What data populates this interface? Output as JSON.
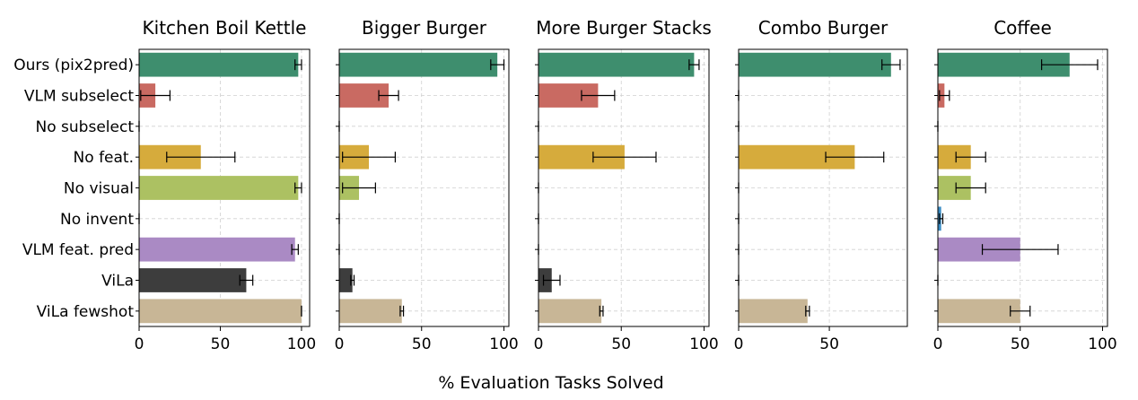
{
  "xlabel": "% Evaluation Tasks Solved",
  "categories": [
    "Ours (pix2pred)",
    "VLM subselect",
    "No subselect",
    "No feat.",
    "No visual",
    "No invent",
    "VLM feat. pred",
    "ViLa",
    "ViLa fewshot"
  ],
  "colors": [
    "#3e8e6e",
    "#c96a62",
    "#555555",
    "#d6ab3c",
    "#acc162",
    "#3a8cc4",
    "#aa8ac4",
    "#3d3d3d",
    "#c8b696"
  ],
  "chart_data": [
    {
      "type": "bar",
      "orientation": "horizontal",
      "title": "Kitchen Boil Kettle",
      "categories": [
        "Ours (pix2pred)",
        "VLM subselect",
        "No subselect",
        "No feat.",
        "No visual",
        "No invent",
        "VLM feat. pred",
        "ViLa",
        "ViLa fewshot"
      ],
      "values": [
        98,
        10,
        0,
        38,
        98,
        0,
        96,
        66,
        100
      ],
      "errors": [
        2,
        9,
        0,
        21,
        2,
        0,
        2,
        4,
        0
      ],
      "xlim": [
        0,
        105
      ],
      "xticks": [
        0,
        50,
        100
      ],
      "grid": true
    },
    {
      "type": "bar",
      "orientation": "horizontal",
      "title": "Bigger Burger",
      "categories": [
        "Ours (pix2pred)",
        "VLM subselect",
        "No subselect",
        "No feat.",
        "No visual",
        "No invent",
        "VLM feat. pred",
        "ViLa",
        "ViLa fewshot"
      ],
      "values": [
        96,
        30,
        0,
        18,
        12,
        0,
        0,
        8,
        38
      ],
      "errors": [
        4,
        6,
        0,
        16,
        10,
        0,
        0,
        1,
        1
      ],
      "xlim": [
        0,
        103
      ],
      "xticks": [
        0,
        50,
        100
      ],
      "grid": true
    },
    {
      "type": "bar",
      "orientation": "horizontal",
      "title": "More Burger Stacks",
      "categories": [
        "Ours (pix2pred)",
        "VLM subselect",
        "No subselect",
        "No feat.",
        "No visual",
        "No invent",
        "VLM feat. pred",
        "ViLa",
        "ViLa fewshot"
      ],
      "values": [
        94,
        36,
        0,
        52,
        0,
        0,
        0,
        8,
        38
      ],
      "errors": [
        3,
        10,
        0,
        19,
        0,
        0,
        0,
        5,
        1
      ],
      "xlim": [
        0,
        103
      ],
      "xticks": [
        0,
        50,
        100
      ],
      "grid": true
    },
    {
      "type": "bar",
      "orientation": "horizontal",
      "title": "Combo Burger",
      "categories": [
        "Ours (pix2pred)",
        "VLM subselect",
        "No subselect",
        "No feat.",
        "No visual",
        "No invent",
        "VLM feat. pred",
        "ViLa",
        "ViLa fewshot"
      ],
      "values": [
        84,
        0,
        0,
        64,
        0,
        0,
        0,
        0,
        38
      ],
      "errors": [
        5,
        0,
        0,
        16,
        0,
        0,
        0,
        0,
        1
      ],
      "xlim": [
        0,
        93
      ],
      "xticks": [
        0,
        50
      ],
      "grid": true
    },
    {
      "type": "bar",
      "orientation": "horizontal",
      "title": "Coffee",
      "categories": [
        "Ours (pix2pred)",
        "VLM subselect",
        "No subselect",
        "No feat.",
        "No visual",
        "No invent",
        "VLM feat. pred",
        "ViLa",
        "ViLa fewshot"
      ],
      "values": [
        80,
        4,
        0,
        20,
        20,
        2,
        50,
        0,
        50
      ],
      "errors": [
        17,
        3,
        0,
        9,
        9,
        1,
        23,
        0,
        6
      ],
      "xlim": [
        0,
        103
      ],
      "xticks": [
        0,
        50,
        100
      ],
      "grid": true
    }
  ]
}
